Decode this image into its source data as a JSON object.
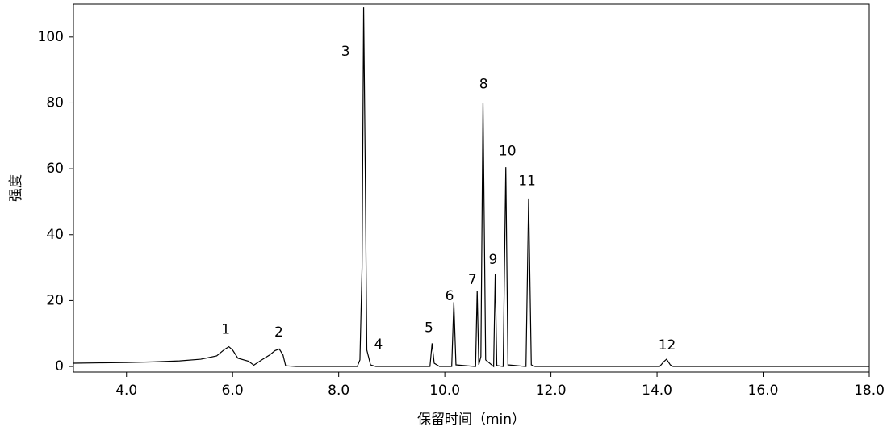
{
  "chart_data": {
    "type": "line",
    "xlabel": "保留时间（min）",
    "ylabel": "强度",
    "xlim": [
      3,
      18
    ],
    "ylim": [
      -1.7,
      110
    ],
    "xticks": [
      {
        "value": 4,
        "label": "4.0"
      },
      {
        "value": 6,
        "label": "6.0"
      },
      {
        "value": 8,
        "label": "8.0"
      },
      {
        "value": 10,
        "label": "10.0"
      },
      {
        "value": 12,
        "label": "12.0"
      },
      {
        "value": 14,
        "label": "14.0"
      },
      {
        "value": 16,
        "label": "16.0"
      },
      {
        "value": 18,
        "label": "18.0"
      }
    ],
    "yticks": [
      0,
      20,
      40,
      60,
      80,
      100
    ],
    "series": [
      {
        "color": "#000000",
        "x": [
          3.0,
          3.5,
          4.0,
          4.5,
          5.0,
          5.4,
          5.7,
          5.85,
          5.93,
          6.0,
          6.1,
          6.3,
          6.4,
          6.55,
          6.7,
          6.8,
          6.88,
          6.95,
          7.0,
          7.2,
          8.35,
          8.4,
          8.44,
          8.47,
          8.5,
          8.53,
          8.6,
          8.7,
          9.72,
          9.76,
          9.8,
          9.9,
          10.13,
          10.17,
          10.21,
          10.58,
          10.61,
          10.64,
          10.68,
          10.72,
          10.77,
          10.92,
          10.95,
          10.98,
          11.1,
          11.15,
          11.19,
          11.53,
          11.58,
          11.63,
          11.7,
          14.05,
          14.13,
          14.18,
          14.25,
          14.3,
          18.0
        ],
        "values": [
          1.0,
          1.1,
          1.2,
          1.4,
          1.7,
          2.2,
          3.2,
          5.2,
          6.0,
          5.0,
          2.5,
          1.6,
          0.4,
          2.0,
          3.5,
          4.8,
          5.3,
          3.5,
          0.2,
          0,
          0,
          2,
          30,
          109,
          60,
          5,
          0.5,
          0,
          0,
          7,
          1,
          0,
          0,
          19.5,
          0.5,
          0,
          23,
          0.5,
          3,
          80,
          2,
          0,
          28,
          0.3,
          0,
          60.5,
          0.5,
          0,
          51,
          0.5,
          0,
          0,
          1.5,
          2.2,
          0.5,
          0,
          0
        ]
      }
    ],
    "annotations": [
      {
        "text": "1",
        "x": 5.87,
        "y": 11.2
      },
      {
        "text": "2",
        "x": 6.87,
        "y": 10.3
      },
      {
        "text": "3",
        "x": 8.13,
        "y": 95.6
      },
      {
        "text": "4",
        "x": 8.75,
        "y": 6.6
      },
      {
        "text": "5",
        "x": 9.7,
        "y": 11.7
      },
      {
        "text": "6",
        "x": 10.09,
        "y": 21.3
      },
      {
        "text": "7",
        "x": 10.52,
        "y": 26.2
      },
      {
        "text": "8",
        "x": 10.73,
        "y": 85.6
      },
      {
        "text": "9",
        "x": 10.91,
        "y": 32.3
      },
      {
        "text": "10",
        "x": 11.18,
        "y": 65.3
      },
      {
        "text": "11",
        "x": 11.55,
        "y": 56.2
      },
      {
        "text": "12",
        "x": 14.19,
        "y": 6.4
      }
    ]
  }
}
